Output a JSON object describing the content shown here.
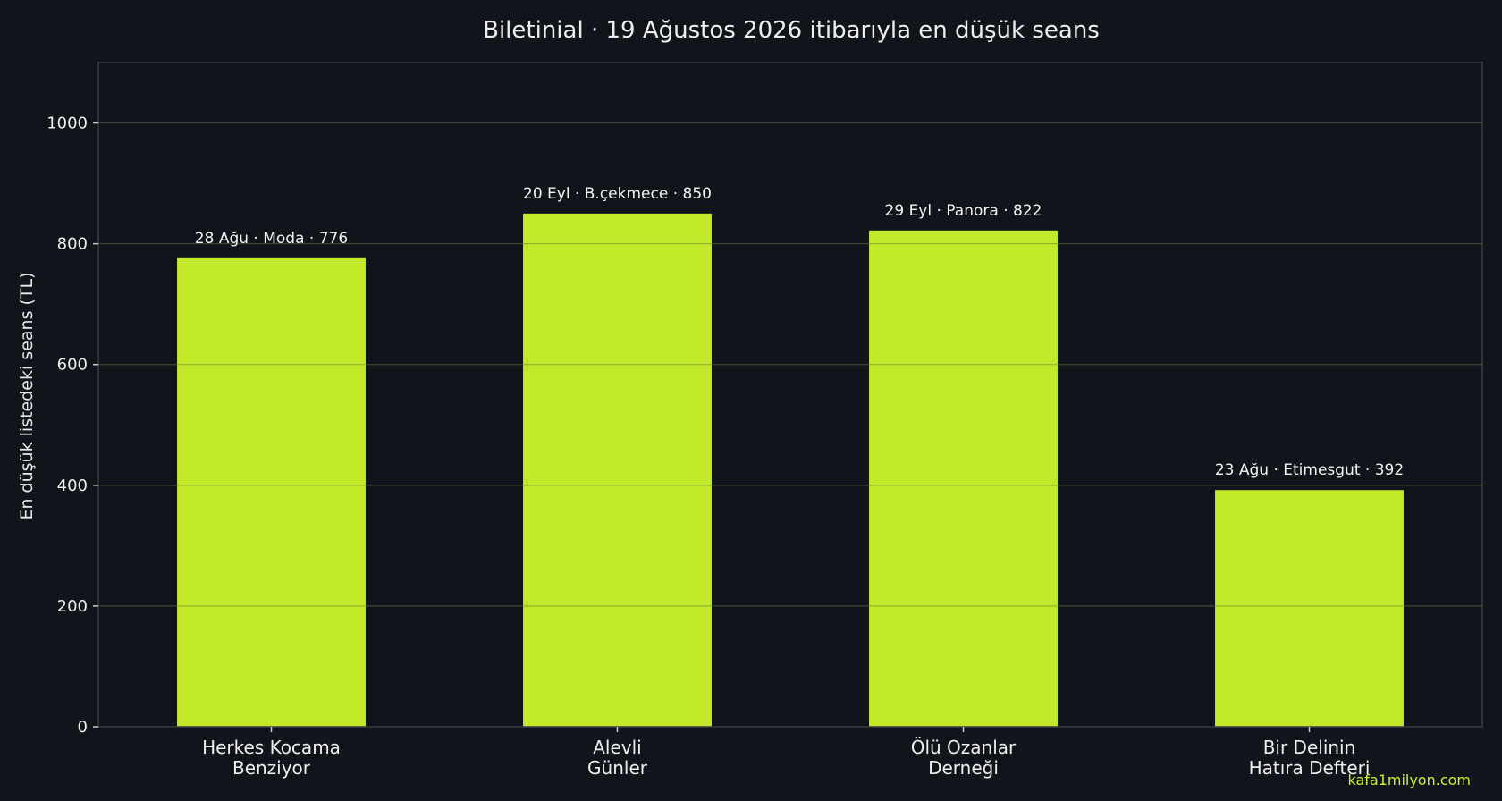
{
  "chart_data": {
    "type": "bar",
    "title": "Biletinial · 19 Ağustos 2026 itibarıyla en düşük seans",
    "xlabel": "",
    "ylabel": "En düşük listedeki seans (TL)",
    "categories": [
      [
        "Herkes Kocama",
        "Benziyor"
      ],
      [
        "Alevli",
        "Günler"
      ],
      [
        "Ölü Ozanlar",
        "Derneği"
      ],
      [
        "Bir Delinin",
        "Hatıra Defteri"
      ]
    ],
    "values": [
      776,
      850,
      822,
      392
    ],
    "data_labels": [
      "28 Ağu · Moda · 776",
      "20 Eyl · B.çekmece · 850",
      "29 Eyl · Panora · 822",
      "23 Ağu · Etimesgut · 392"
    ],
    "ylim": [
      0,
      1100
    ],
    "yticks": [
      0,
      200,
      400,
      600,
      800,
      1000
    ],
    "grid": true,
    "legend": "none",
    "colors": {
      "bar": "#c8f22c",
      "background": "#11141a",
      "grid": "#262a30",
      "frame": "#3a3e44",
      "text": "#eeeeee"
    }
  },
  "watermark": "kafa1milyon.com"
}
